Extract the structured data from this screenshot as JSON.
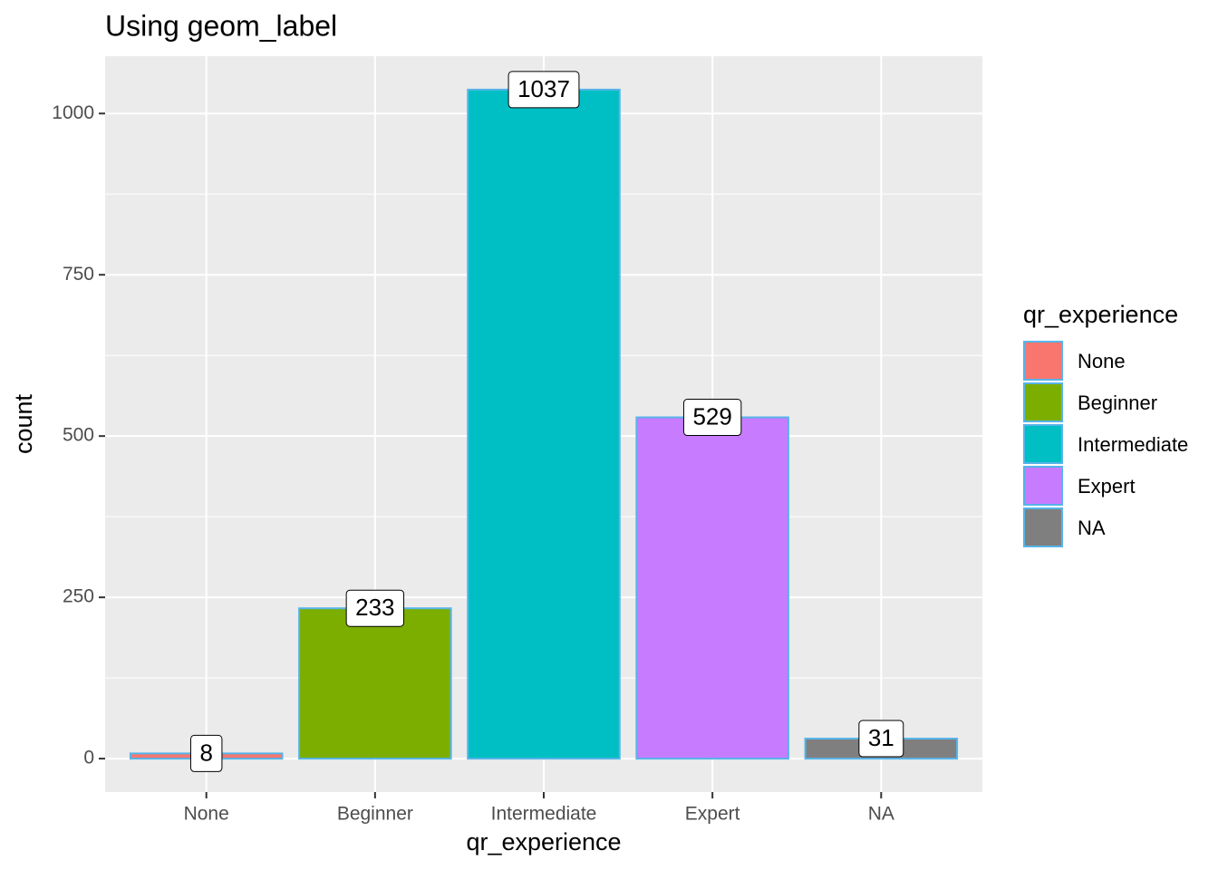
{
  "chart_data": {
    "type": "bar",
    "title": "Using geom_label",
    "x_label": "qr_experience",
    "y_label": "count",
    "categories": [
      "None",
      "Beginner",
      "Intermediate",
      "Expert",
      "NA"
    ],
    "values": [
      8,
      233,
      1037,
      529,
      31
    ],
    "colors": [
      "#F8766D",
      "#7CAE00",
      "#00BFC4",
      "#C77CFF",
      "#7F7F7F"
    ],
    "outline": "#56B4E9",
    "legend_title": "qr_experience",
    "ylim": [
      -51.85,
      1088.85
    ],
    "yticks": [
      0,
      250,
      500,
      750,
      1000
    ],
    "grid": true
  }
}
